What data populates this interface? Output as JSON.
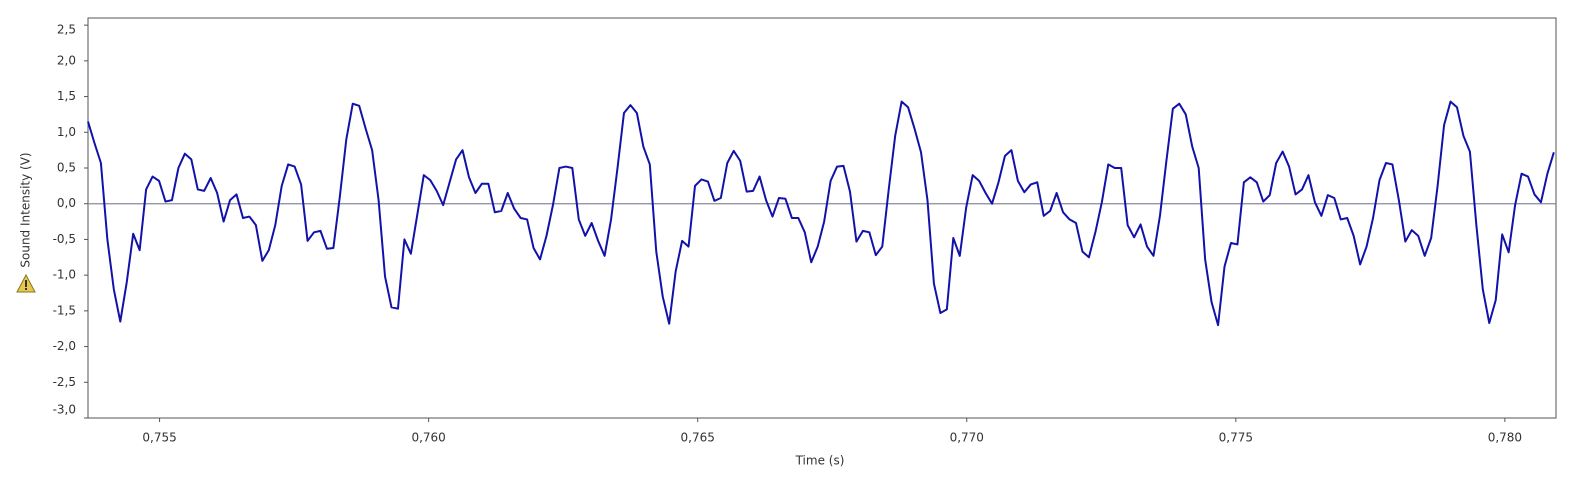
{
  "chart_data": {
    "type": "line",
    "xlabel": "Time (s)",
    "ylabel": "Sound Intensity (V)",
    "xlim": [
      0.75367,
      0.78095
    ],
    "ylim": [
      -3.0,
      2.6
    ],
    "xticks": [
      {
        "value": 0.755,
        "label": "0,755"
      },
      {
        "value": 0.76,
        "label": "0,760"
      },
      {
        "value": 0.765,
        "label": "0,765"
      },
      {
        "value": 0.77,
        "label": "0,770"
      },
      {
        "value": 0.775,
        "label": "0,775"
      },
      {
        "value": 0.78,
        "label": "0,780"
      }
    ],
    "yticks": [
      {
        "value": -3.0,
        "label": "-3,0"
      },
      {
        "value": -2.5,
        "label": "-2,5"
      },
      {
        "value": -2.0,
        "label": "-2,0"
      },
      {
        "value": -1.5,
        "label": "-1,5"
      },
      {
        "value": -1.0,
        "label": "-1,0"
      },
      {
        "value": -0.5,
        "label": "-0,5"
      },
      {
        "value": 0,
        "label": "0,0"
      },
      {
        "value": 0.5,
        "label": "0,5"
      },
      {
        "value": 1.0,
        "label": "1,0"
      },
      {
        "value": 1.5,
        "label": "1,5"
      },
      {
        "value": 2.0,
        "label": "2,0"
      },
      {
        "value": 2.5,
        "label": "2,5"
      }
    ],
    "hline": 0,
    "hline_color": "#8a8a9e",
    "grid": false,
    "x": [
      0.75367,
      0.75379,
      0.75391,
      0.75403,
      0.75415,
      0.75427,
      0.75439,
      0.75451,
      0.75463,
      0.75475,
      0.75487,
      0.75499,
      0.75511,
      0.75523,
      0.75535,
      0.75547,
      0.75559,
      0.75571,
      0.75583,
      0.75595,
      0.75607,
      0.75619,
      0.75631,
      0.75643,
      0.75655,
      0.75667,
      0.75679,
      0.75691,
      0.75703,
      0.75715,
      0.75727,
      0.75739,
      0.75751,
      0.75763,
      0.75775,
      0.75787,
      0.75799,
      0.75811,
      0.75823,
      0.75835,
      0.75847,
      0.75859,
      0.75871,
      0.75883,
      0.75895,
      0.75907,
      0.75919,
      0.75931,
      0.75943,
      0.75955,
      0.75967,
      0.75979,
      0.75991,
      0.76003,
      0.76015,
      0.76027,
      0.76039,
      0.76051,
      0.76063,
      0.76075,
      0.76087,
      0.76099,
      0.76111,
      0.76123,
      0.76135,
      0.76147,
      0.76159,
      0.76171,
      0.76183,
      0.76195,
      0.76207,
      0.76219,
      0.76231,
      0.76243,
      0.76255,
      0.76267,
      0.76279,
      0.76291,
      0.76303,
      0.76315,
      0.76327,
      0.76339,
      0.76351,
      0.76363,
      0.76375,
      0.76387,
      0.76399,
      0.76411,
      0.76423,
      0.76435,
      0.76447,
      0.76459,
      0.76471,
      0.76483,
      0.76495,
      0.76507,
      0.76519,
      0.76531,
      0.76543,
      0.76555,
      0.76567,
      0.76579,
      0.76591,
      0.76603,
      0.76615,
      0.76627,
      0.76639,
      0.76651,
      0.76663,
      0.76675,
      0.76687,
      0.76699,
      0.76711,
      0.76723,
      0.76735,
      0.76747,
      0.76759,
      0.76771,
      0.76783,
      0.76795,
      0.76807,
      0.76819,
      0.76831,
      0.76843,
      0.76855,
      0.76867,
      0.76879,
      0.76891,
      0.76903,
      0.76915,
      0.76927,
      0.76939,
      0.76951,
      0.76963,
      0.76975,
      0.76987,
      0.76999,
      0.77011,
      0.77023,
      0.77035,
      0.77047,
      0.77059,
      0.77071,
      0.77083,
      0.77095,
      0.77107,
      0.77119,
      0.77131,
      0.77143,
      0.77155,
      0.77167,
      0.77179,
      0.77191,
      0.77203,
      0.77215,
      0.77227,
      0.77239,
      0.77251,
      0.77263,
      0.77275,
      0.77287,
      0.77299,
      0.77311,
      0.77323,
      0.77335,
      0.77347,
      0.77359,
      0.77371,
      0.77383,
      0.77395,
      0.77407,
      0.77419,
      0.77431,
      0.77443,
      0.77455,
      0.77467,
      0.77479,
      0.77491,
      0.77503,
      0.77515,
      0.77527,
      0.77539,
      0.77551,
      0.77563,
      0.77575,
      0.77587,
      0.77599,
      0.77611,
      0.77623,
      0.77635,
      0.77647,
      0.77659,
      0.77671,
      0.77683,
      0.77695,
      0.77707,
      0.77719,
      0.77731,
      0.77743,
      0.77755,
      0.77767,
      0.77779,
      0.77791,
      0.77803,
      0.77815,
      0.77827,
      0.77839,
      0.77851,
      0.77863,
      0.77875,
      0.77887,
      0.77899,
      0.77911,
      0.77923,
      0.77935,
      0.77947,
      0.77959,
      0.77971,
      0.77983,
      0.77995,
      0.78007,
      0.78019,
      0.78031,
      0.78043,
      0.78055,
      0.78067,
      0.78079,
      0.78091
    ],
    "series": [
      {
        "color": "#1212aa",
        "values": [
          1.15,
          0.85,
          0.57,
          -0.5,
          -1.2,
          -1.65,
          -1.1,
          -0.42,
          -0.65,
          0.2,
          0.38,
          0.32,
          0.03,
          0.05,
          0.5,
          0.7,
          0.62,
          0.2,
          0.18,
          0.36,
          0.15,
          -0.25,
          0.05,
          0.13,
          -0.2,
          -0.18,
          -0.3,
          -0.8,
          -0.65,
          -0.3,
          0.25,
          0.55,
          0.52,
          0.27,
          -0.52,
          -0.4,
          -0.38,
          -0.63,
          -0.62,
          0.1,
          0.9,
          1.4,
          1.37,
          1.05,
          0.75,
          0.05,
          -1.02,
          -1.45,
          -1.47,
          -0.5,
          -0.7,
          -0.15,
          0.4,
          0.33,
          0.18,
          -0.02,
          0.3,
          0.62,
          0.75,
          0.37,
          0.15,
          0.28,
          0.28,
          -0.12,
          -0.1,
          0.15,
          -0.07,
          -0.2,
          -0.22,
          -0.62,
          -0.78,
          -0.45,
          -0.02,
          0.5,
          0.52,
          0.5,
          -0.22,
          -0.45,
          -0.27,
          -0.52,
          -0.73,
          -0.22,
          0.5,
          1.27,
          1.38,
          1.27,
          0.8,
          0.55,
          -0.67,
          -1.3,
          -1.68,
          -0.95,
          -0.52,
          -0.6,
          0.25,
          0.34,
          0.31,
          0.04,
          0.08,
          0.57,
          0.74,
          0.6,
          0.17,
          0.18,
          0.38,
          0.05,
          -0.18,
          0.08,
          0.07,
          -0.2,
          -0.2,
          -0.4,
          -0.82,
          -0.6,
          -0.25,
          0.32,
          0.52,
          0.53,
          0.17,
          -0.53,
          -0.38,
          -0.4,
          -0.72,
          -0.6,
          0.2,
          0.95,
          1.43,
          1.35,
          1.05,
          0.72,
          0.05,
          -1.12,
          -1.53,
          -1.48,
          -0.48,
          -0.73,
          -0.05,
          0.4,
          0.32,
          0.15,
          0.0,
          0.3,
          0.67,
          0.75,
          0.32,
          0.16,
          0.27,
          0.3,
          -0.17,
          -0.1,
          0.15,
          -0.12,
          -0.22,
          -0.27,
          -0.67,
          -0.75,
          -0.4,
          0.02,
          0.55,
          0.5,
          0.5,
          -0.3,
          -0.47,
          -0.29,
          -0.6,
          -0.73,
          -0.17,
          0.6,
          1.33,
          1.4,
          1.25,
          0.8,
          0.5,
          -0.78,
          -1.38,
          -1.7,
          -0.88,
          -0.55,
          -0.57,
          0.3,
          0.37,
          0.3,
          0.03,
          0.12,
          0.57,
          0.73,
          0.52,
          0.13,
          0.2,
          0.4,
          0.02,
          -0.17,
          0.12,
          0.08,
          -0.22,
          -0.2,
          -0.45,
          -0.85,
          -0.6,
          -0.2,
          0.33,
          0.57,
          0.55,
          0.05,
          -0.53,
          -0.37,
          -0.45,
          -0.73,
          -0.48,
          0.25,
          1.1,
          1.43,
          1.35,
          0.95,
          0.73,
          -0.3,
          -1.2,
          -1.67,
          -1.35,
          -0.43,
          -0.68,
          -0.02,
          0.42,
          0.38,
          0.13,
          0.02,
          0.42,
          0.72
        ]
      }
    ]
  }
}
